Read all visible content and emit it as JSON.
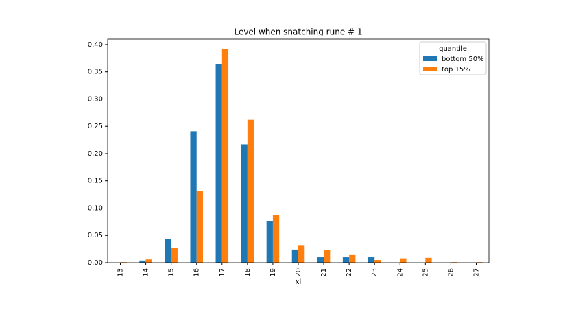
{
  "chart_data": {
    "type": "bar",
    "title": "Level when snatching rune # 1",
    "x_label": "xl",
    "categories": [
      "13",
      "14",
      "15",
      "16",
      "17",
      "18",
      "19",
      "20",
      "21",
      "22",
      "23",
      "24",
      "25",
      "26",
      "27"
    ],
    "series": [
      {
        "name": "bottom 50%",
        "color": "#1f77b4",
        "values": [
          0,
          0.004,
          0.044,
          0.241,
          0.364,
          0.217,
          0.076,
          0.024,
          0.01,
          0.01,
          0.01,
          0,
          0,
          0,
          0
        ]
      },
      {
        "name": "top 15%",
        "color": "#ff7f0e",
        "values": [
          0.001,
          0.006,
          0.027,
          0.132,
          0.392,
          0.262,
          0.087,
          0.031,
          0.023,
          0.014,
          0.005,
          0.008,
          0.009,
          0.001,
          0.001
        ]
      }
    ],
    "ylim": [
      0,
      0.41
    ],
    "yticks": [
      {
        "value": 0,
        "label": "0.00"
      },
      {
        "value": 0.05,
        "label": "0.05"
      },
      {
        "value": 0.1,
        "label": "0.10"
      },
      {
        "value": 0.15,
        "label": "0.15"
      },
      {
        "value": 0.2,
        "label": "0.20"
      },
      {
        "value": 0.25,
        "label": "0.25"
      },
      {
        "value": 0.3,
        "label": "0.30"
      },
      {
        "value": 0.35,
        "label": "0.35"
      },
      {
        "value": 0.4,
        "label": "0.40"
      }
    ],
    "legend": {
      "title": "quantile",
      "position": "upper right"
    }
  }
}
